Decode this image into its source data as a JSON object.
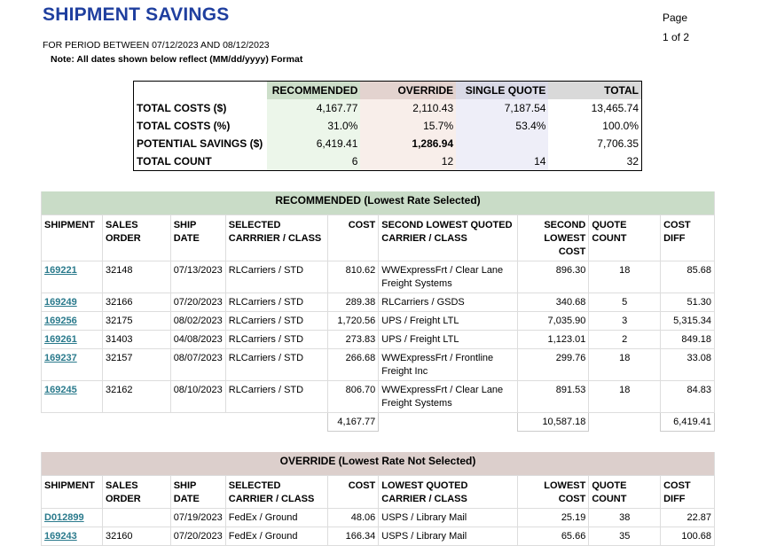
{
  "header": {
    "title": "SHIPMENT SAVINGS",
    "page_label": "Page",
    "page_num": "1 of 2",
    "period": "FOR PERIOD BETWEEN 07/12/2023 AND 08/12/2023",
    "note": "Note: All dates shown below reflect (MM/dd/yyyy) Format"
  },
  "summary": {
    "headers": [
      "RECOMMENDED",
      "OVERRIDE",
      "SINGLE QUOTE",
      "TOTAL"
    ],
    "rows": [
      {
        "label": "TOTAL COSTS ($)",
        "rec": "4,167.77",
        "ovr": "2,110.43",
        "sq": "7,187.54",
        "tot": "13,465.74"
      },
      {
        "label": "TOTAL COSTS (%)",
        "rec": "31.0%",
        "ovr": "15.7%",
        "sq": "53.4%",
        "tot": "100.0%"
      },
      {
        "label": "POTENTIAL SAVINGS ($)",
        "rec": "6,419.41",
        "ovr": "1,286.94",
        "sq": "",
        "tot": "7,706.35"
      },
      {
        "label": "TOTAL COUNT",
        "rec": "6",
        "ovr": "12",
        "sq": "14",
        "tot": "32"
      }
    ]
  },
  "recommended": {
    "title": "RECOMMENDED (Lowest Rate Selected)",
    "columns": [
      "SHIPMENT",
      "SALES ORDER",
      "SHIP DATE",
      "SELECTED CARRRIER / CLASS",
      "COST",
      "SECOND LOWEST QUOTED CARRIER / CLASS",
      "SECOND LOWEST COST",
      "QUOTE COUNT",
      "COST DIFF"
    ],
    "rows": [
      {
        "shipment": "169221",
        "sales_order": "32148",
        "ship_date": "07/13/2023",
        "carrier": "RLCarriers / STD",
        "cost": "810.62",
        "second_carrier": "WWExpressFrt / Clear Lane Freight Systems",
        "second_cost": "896.30",
        "quote_count": "18",
        "cost_diff": "85.68"
      },
      {
        "shipment": "169249",
        "sales_order": "32166",
        "ship_date": "07/20/2023",
        "carrier": "RLCarriers / STD",
        "cost": "289.38",
        "second_carrier": "RLCarriers / GSDS",
        "second_cost": "340.68",
        "quote_count": "5",
        "cost_diff": "51.30"
      },
      {
        "shipment": "169256",
        "sales_order": "32175",
        "ship_date": "08/02/2023",
        "carrier": "RLCarriers / STD",
        "cost": "1,720.56",
        "second_carrier": "UPS / Freight LTL",
        "second_cost": "7,035.90",
        "quote_count": "3",
        "cost_diff": "5,315.34"
      },
      {
        "shipment": "169261",
        "sales_order": "31403",
        "ship_date": "04/08/2023",
        "carrier": "RLCarriers / STD",
        "cost": "273.83",
        "second_carrier": "UPS / Freight LTL",
        "second_cost": "1,123.01",
        "quote_count": "2",
        "cost_diff": "849.18"
      },
      {
        "shipment": "169237",
        "sales_order": "32157",
        "ship_date": "08/07/2023",
        "carrier": "RLCarriers / STD",
        "cost": "266.68",
        "second_carrier": "WWExpressFrt / Frontline Freight Inc",
        "second_cost": "299.76",
        "quote_count": "18",
        "cost_diff": "33.08"
      },
      {
        "shipment": "169245",
        "sales_order": "32162",
        "ship_date": "08/10/2023",
        "carrier": "RLCarriers / STD",
        "cost": "806.70",
        "second_carrier": "WWExpressFrt / Clear Lane Freight Systems",
        "second_cost": "891.53",
        "quote_count": "18",
        "cost_diff": "84.83"
      }
    ],
    "totals": {
      "cost": "4,167.77",
      "second_cost": "10,587.18",
      "cost_diff": "6,419.41"
    }
  },
  "override": {
    "title": "OVERRIDE (Lowest Rate Not Selected)",
    "columns": [
      "SHIPMENT",
      "SALES ORDER",
      "SHIP DATE",
      "SELECTED CARRIER / CLASS",
      "COST",
      "LOWEST QUOTED CARRIER / CLASS",
      "LOWEST COST",
      "QUOTE COUNT",
      "COST DIFF"
    ],
    "rows": [
      {
        "shipment": "D012899",
        "sales_order": "",
        "ship_date": "07/19/2023",
        "carrier": "FedEx / Ground",
        "cost": "48.06",
        "second_carrier": "USPS / Library Mail",
        "second_cost": "25.19",
        "quote_count": "38",
        "cost_diff": "22.87"
      },
      {
        "shipment": "169243",
        "sales_order": "32160",
        "ship_date": "07/20/2023",
        "carrier": "FedEx / Ground",
        "cost": "166.34",
        "second_carrier": "USPS / Library Mail",
        "second_cost": "65.66",
        "quote_count": "35",
        "cost_diff": "100.68"
      }
    ]
  }
}
